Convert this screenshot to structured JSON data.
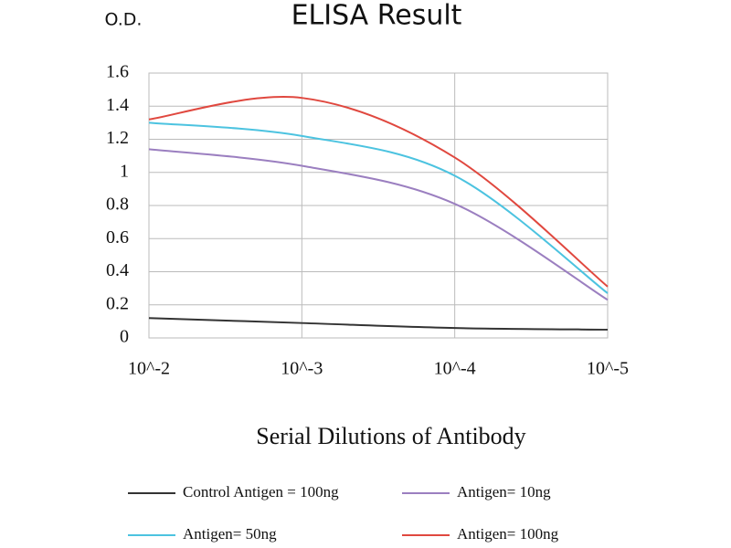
{
  "chart_data": {
    "type": "line",
    "title": "ELISA Result",
    "y_label": "O.D.",
    "x_label": "Serial Dilutions of Antibody",
    "categories": [
      "10^-2",
      "10^-3",
      "10^-4",
      "10^-5"
    ],
    "series": [
      {
        "name": "Control Antigen = 100ng",
        "color": "#333333",
        "values": [
          0.12,
          0.09,
          0.06,
          0.05
        ]
      },
      {
        "name": "Antigen= 10ng",
        "color": "#9b7fc0",
        "values": [
          1.14,
          1.04,
          0.81,
          0.23
        ]
      },
      {
        "name": "Antigen= 50ng",
        "color": "#4cc3e0",
        "values": [
          1.3,
          1.22,
          0.98,
          0.27
        ]
      },
      {
        "name": "Antigen= 100ng",
        "color": "#e0483f",
        "values": [
          1.32,
          1.45,
          1.09,
          0.31
        ]
      }
    ],
    "ylim": [
      0,
      1.6
    ],
    "yticks": [
      0,
      0.2,
      0.4,
      0.6,
      0.8,
      1,
      1.2,
      1.4,
      1.6
    ],
    "grid": true
  }
}
